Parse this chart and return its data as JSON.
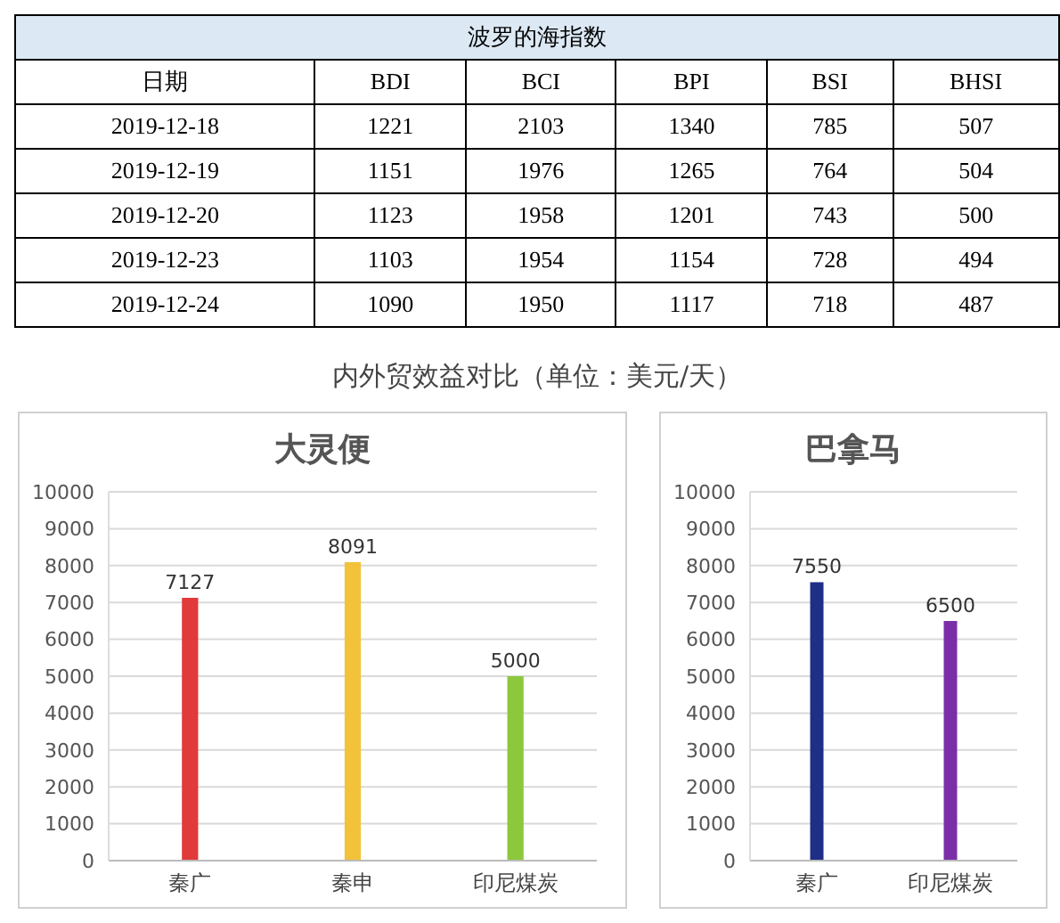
{
  "chart_data": [
    {
      "type": "heatmap",
      "title": "波罗的海指数",
      "ylabel": "日期",
      "data_labels": true,
      "categories": [
        "BDI",
        "BCI",
        "BPI",
        "BSI",
        "BHSI"
      ],
      "y_categories": [
        "2019-12-18",
        "2019-12-19",
        "2019-12-20",
        "2019-12-23",
        "2019-12-24"
      ],
      "cells": [
        [
          1221,
          2103,
          1340,
          785,
          507
        ],
        [
          1151,
          1976,
          1265,
          764,
          504
        ],
        [
          1123,
          1958,
          1201,
          743,
          500
        ],
        [
          1103,
          1954,
          1154,
          728,
          494
        ],
        [
          1090,
          1950,
          1117,
          718,
          487
        ]
      ]
    },
    {
      "type": "bar",
      "annotations": [
        "内外贸效益对比（单位：美元/天）"
      ],
      "title": "大灵便",
      "categories": [
        "秦广",
        "秦申",
        "印尼煤炭"
      ],
      "values": [
        7127,
        8091,
        5000
      ],
      "colors": [
        "#e03a3a",
        "#f2c23a",
        "#8cc83c"
      ],
      "ylim": [
        0,
        10000
      ],
      "yticks": [
        0,
        1000,
        2000,
        3000,
        4000,
        5000,
        6000,
        7000,
        8000,
        9000,
        10000
      ],
      "grid": "y",
      "data_labels": true
    },
    {
      "type": "bar",
      "title": "巴拿马",
      "categories": [
        "秦广",
        "印尼煤炭"
      ],
      "values": [
        7550,
        6500
      ],
      "colors": [
        "#1f2f86",
        "#7a2fa8"
      ],
      "ylim": [
        0,
        10000
      ],
      "yticks": [
        0,
        1000,
        2000,
        3000,
        4000,
        5000,
        6000,
        7000,
        8000,
        9000,
        10000
      ],
      "grid": "y",
      "data_labels": true
    }
  ]
}
